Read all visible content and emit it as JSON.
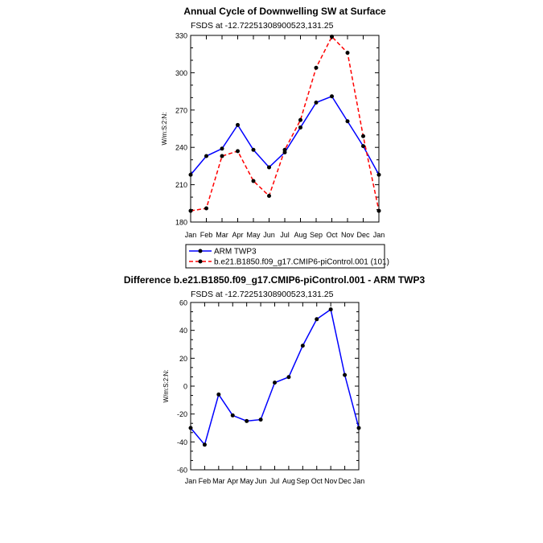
{
  "chart_data": [
    {
      "type": "line",
      "title": "Annual Cycle of Downwelling SW at Surface",
      "subtitle": "FSDS at -12.72251308900523,131.25",
      "ylabel": "W/m:S:2:N:",
      "ylim": [
        180,
        330
      ],
      "yticks": [
        "180",
        "210",
        "240",
        "270",
        "300",
        "330"
      ],
      "categories": [
        "Jan",
        "Feb",
        "Mar",
        "Apr",
        "May",
        "Jun",
        "Jul",
        "Aug",
        "Sep",
        "Oct",
        "Nov",
        "Dec",
        "Jan"
      ],
      "series": [
        {
          "name": "ARM TWP3",
          "color": "#0000ff",
          "dash": "solid",
          "values": [
            218,
            233,
            239,
            258,
            238,
            224,
            236,
            256,
            276,
            281,
            261,
            241,
            218
          ]
        },
        {
          "name": "b.e21.B1850.f09_g17.CMIP6-piControl.001 (101)",
          "color": "#ff0000",
          "dash": "dashed",
          "values": [
            189,
            191,
            233,
            237,
            213,
            201,
            238,
            262,
            304,
            329,
            316,
            249,
            189
          ]
        }
      ],
      "legend": "below"
    },
    {
      "type": "line",
      "title": "Difference b.e21.B1850.f09_g17.CMIP6-piControl.001 - ARM TWP3",
      "subtitle": "FSDS at -12.72251308900523,131.25",
      "ylabel": "W/m:S:2:N:",
      "ylim": [
        -60,
        60
      ],
      "yticks": [
        "-60",
        "-40",
        "-20",
        "0",
        "20",
        "40",
        "60"
      ],
      "categories": [
        "Jan",
        "Feb",
        "Mar",
        "Apr",
        "May",
        "Jun",
        "Jul",
        "Aug",
        "Sep",
        "Oct",
        "Nov",
        "Dec",
        "Jan"
      ],
      "series": [
        {
          "color": "#0000ff",
          "dash": "solid",
          "values": [
            -30,
            -42,
            -6,
            -21,
            -25,
            -24,
            2.5,
            6.5,
            29,
            48,
            55,
            8,
            -30
          ]
        }
      ]
    }
  ]
}
